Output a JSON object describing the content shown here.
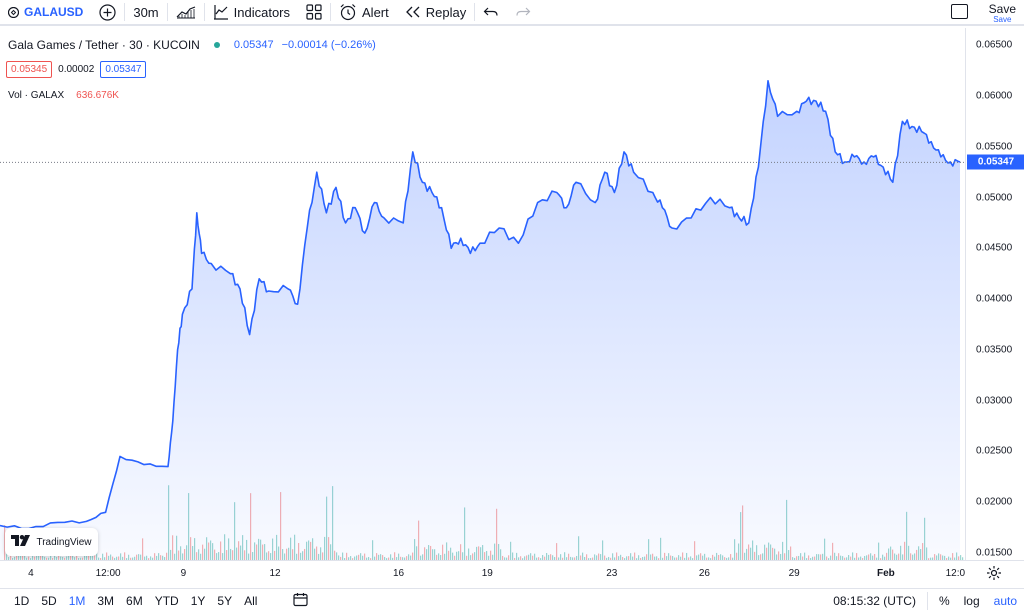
{
  "toolbar": {
    "symbol": "GALAUSD",
    "interval": "30m",
    "indicators_label": "Indicators",
    "alert_label": "Alert",
    "replay_label": "Replay",
    "save_label": "Save",
    "save_sublabel": "Save"
  },
  "legend": {
    "title": "Gala Games / Tether · 30 · KUCOIN",
    "price": "0.05347",
    "change": "−0.00014 (−0.26%)",
    "bid": "0.05345",
    "spread": "0.00002",
    "ask": "0.05347",
    "volume_label": "Vol · GALAX",
    "volume_value": "636.676K"
  },
  "price_axis": {
    "labels": [
      "0.06500",
      "0.06000",
      "0.05500",
      "0.05000",
      "0.04500",
      "0.04000",
      "0.03500",
      "0.03000",
      "0.02500",
      "0.02000",
      "0.01500"
    ],
    "current_price": "0.05347"
  },
  "time_axis": {
    "labels": [
      "4",
      "12:00",
      "9",
      "12",
      "16",
      "19",
      "23",
      "26",
      "29",
      "Feb",
      "12:0"
    ]
  },
  "bottom_bar": {
    "ranges": [
      "1D",
      "5D",
      "1M",
      "3M",
      "6M",
      "YTD",
      "1Y",
      "5Y",
      "All"
    ],
    "active_range": "1M",
    "clock": "08:15:32 (UTC)",
    "percent_label": "%",
    "log_label": "log",
    "auto_label": "auto"
  },
  "watermark": {
    "text": "TradingView"
  },
  "colors": {
    "line": "#2962ff",
    "up_volume": "#26a69a",
    "down_volume": "#ef5350",
    "accent": "#2962ff"
  },
  "chart_data": {
    "type": "area",
    "series": [
      {
        "x": [
          0,
          0.03,
          0.06,
          0.09,
          0.11,
          0.125,
          0.15,
          0.175,
          0.18,
          0.185,
          0.19,
          0.2,
          0.205,
          0.21,
          0.22,
          0.24,
          0.25,
          0.26,
          0.27,
          0.28,
          0.3,
          0.31,
          0.32,
          0.33,
          0.34,
          0.35,
          0.36,
          0.37,
          0.38,
          0.39,
          0.4,
          0.42,
          0.43,
          0.44,
          0.45,
          0.46,
          0.47,
          0.48,
          0.49,
          0.5,
          0.52,
          0.54,
          0.56,
          0.58,
          0.59,
          0.6,
          0.62,
          0.63,
          0.64,
          0.65,
          0.66,
          0.68,
          0.69,
          0.7,
          0.72,
          0.74,
          0.76,
          0.77,
          0.78,
          0.79,
          0.8,
          0.81,
          0.83,
          0.84,
          0.85,
          0.86,
          0.87,
          0.88,
          0.89,
          0.9,
          0.91,
          0.92,
          0.93,
          0.94,
          0.95,
          0.96,
          0.97,
          0.98,
          0.99,
          1.0
        ],
        "y": [
          0.0177,
          0.0174,
          0.018,
          0.0181,
          0.019,
          0.0245,
          0.0237,
          0.0235,
          0.028,
          0.035,
          0.0385,
          0.041,
          0.0485,
          0.0445,
          0.0435,
          0.0425,
          0.041,
          0.0365,
          0.042,
          0.0408,
          0.041,
          0.0395,
          0.047,
          0.0525,
          0.0485,
          0.051,
          0.0475,
          0.049,
          0.0465,
          0.0495,
          0.048,
          0.0475,
          0.0545,
          0.0515,
          0.0505,
          0.049,
          0.045,
          0.046,
          0.0445,
          0.0455,
          0.047,
          0.0455,
          0.0495,
          0.0505,
          0.049,
          0.0515,
          0.0495,
          0.0525,
          0.0505,
          0.0545,
          0.0525,
          0.0505,
          0.049,
          0.047,
          0.048,
          0.05,
          0.049,
          0.048,
          0.0475,
          0.053,
          0.0615,
          0.058,
          0.0585,
          0.0595,
          0.0595,
          0.0585,
          0.0545,
          0.0535,
          0.054,
          0.0535,
          0.054,
          0.053,
          0.0515,
          0.0575,
          0.057,
          0.0565,
          0.0555,
          0.054,
          0.0535,
          0.0535
        ]
      }
    ],
    "ylim": [
      0.0143,
      0.0667
    ],
    "y_ticks": [
      0.065,
      0.06,
      0.055,
      0.05,
      0.045,
      0.04,
      0.035,
      0.03,
      0.025,
      0.02,
      0.015
    ],
    "x_tick_positions": [
      0.032,
      0.112,
      0.19,
      0.285,
      0.413,
      0.505,
      0.634,
      0.73,
      0.823,
      0.918,
      0.99
    ],
    "x_tick_labels": [
      "4",
      "12:00",
      "9",
      "12",
      "16",
      "19",
      "23",
      "26",
      "29",
      "Feb",
      "12:0"
    ],
    "current_value": 0.05347
  }
}
